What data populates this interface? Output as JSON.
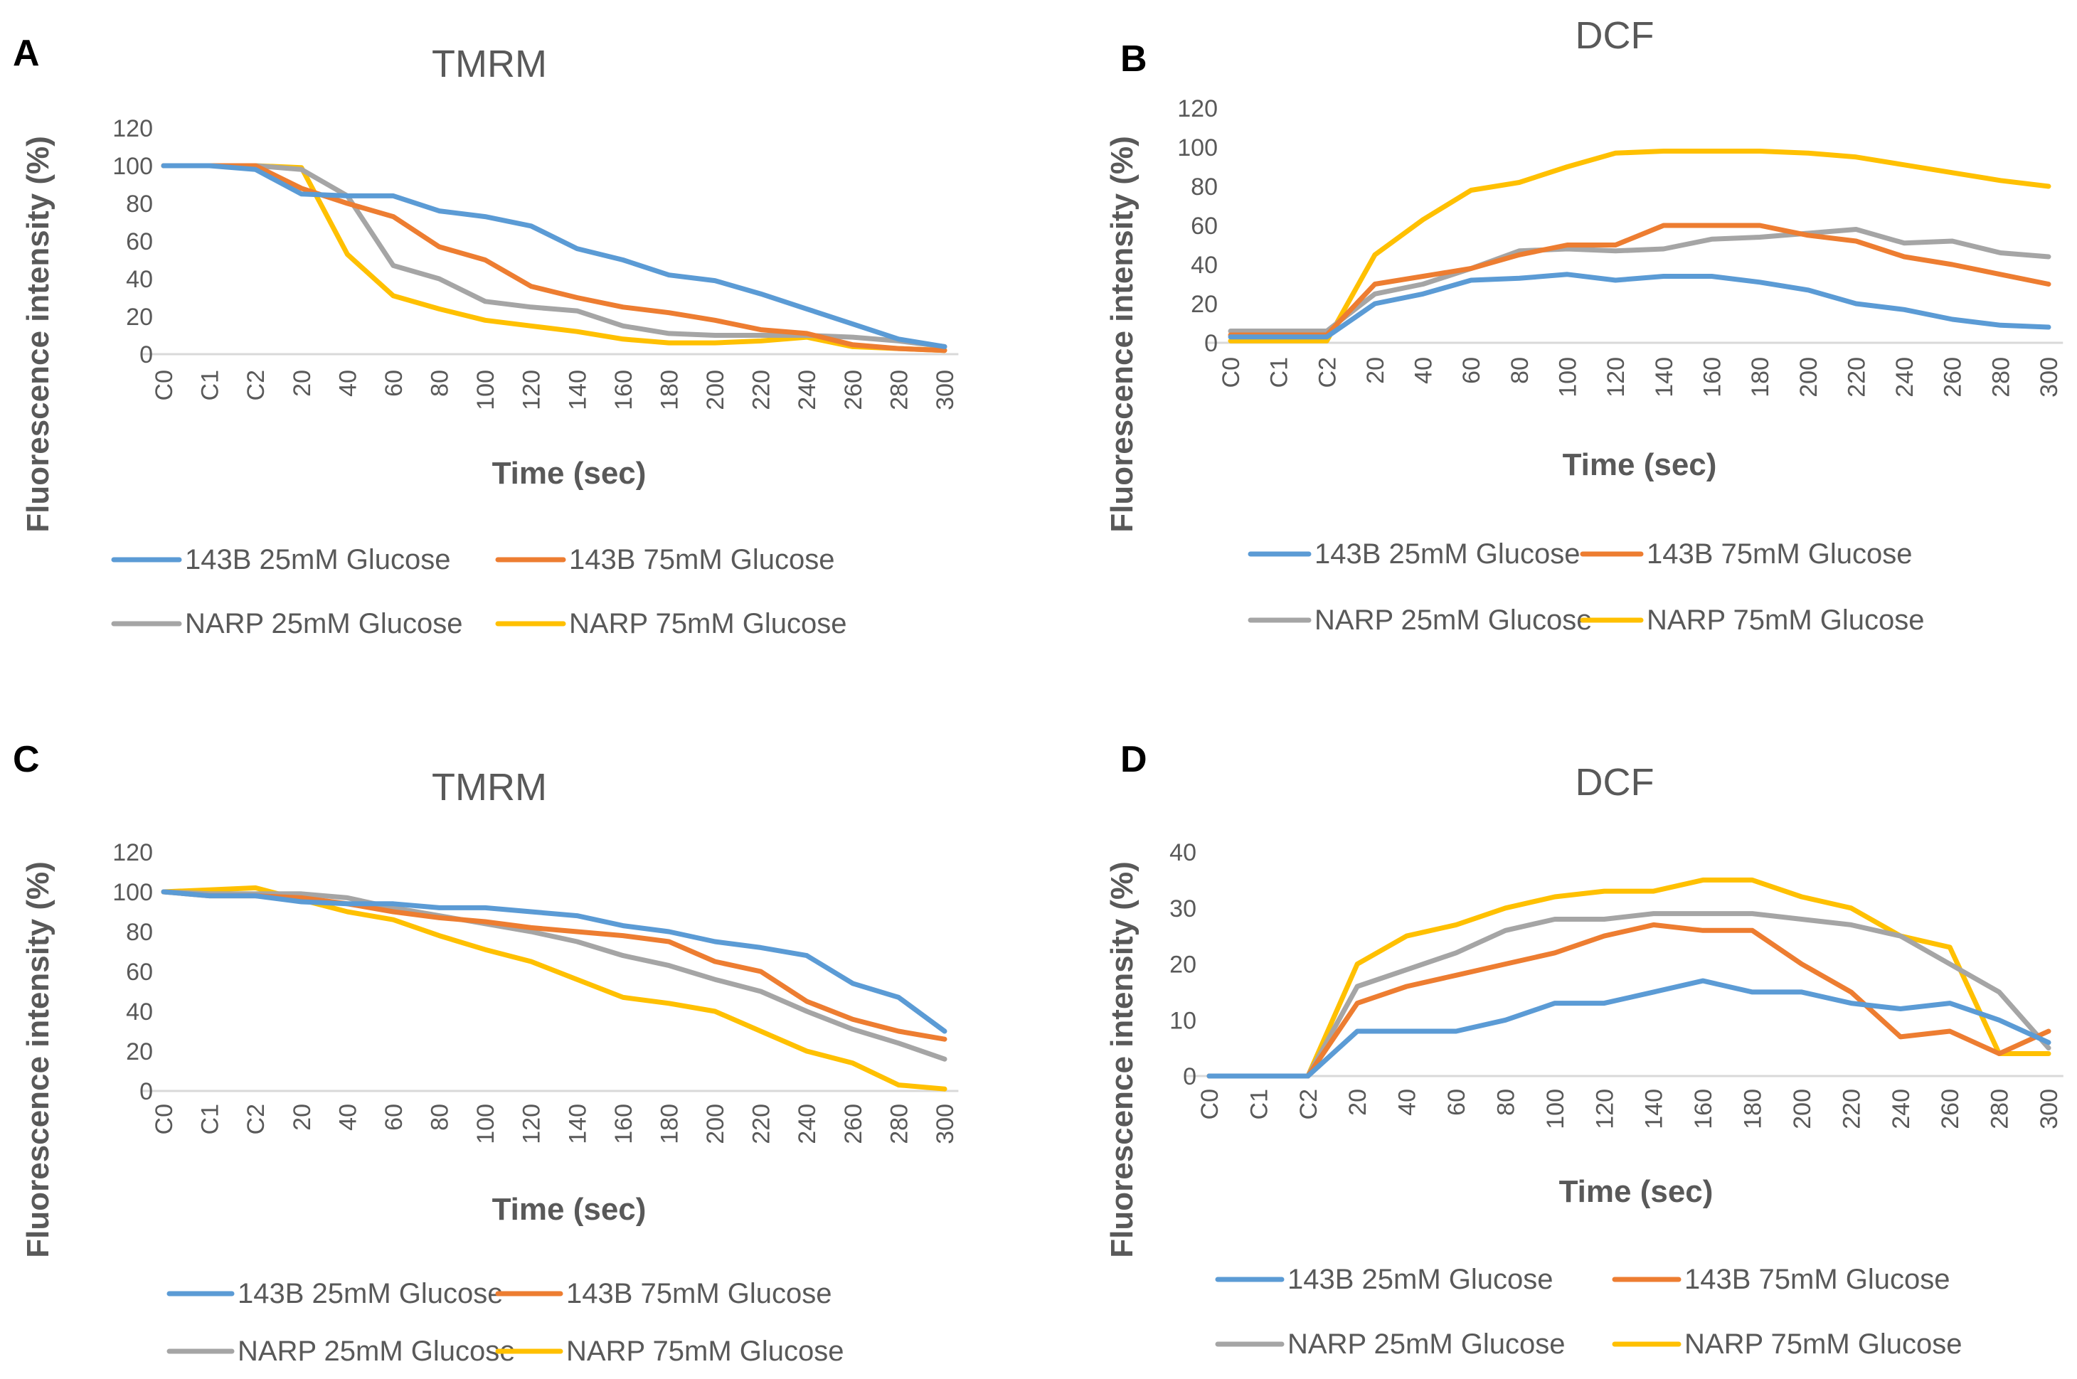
{
  "colors": {
    "blue": "#5b9bd5",
    "orange": "#ed7d31",
    "gray": "#a5a5a5",
    "yellow": "#ffc000"
  },
  "chart_data": [
    {
      "panel": "A",
      "type": "line",
      "title": "TMRM",
      "xlabel": "Time (sec)",
      "ylabel": "Fluorescence intensity (%)",
      "categories": [
        "C0",
        "C1",
        "C2",
        "20",
        "40",
        "60",
        "80",
        "100",
        "120",
        "140",
        "160",
        "180",
        "200",
        "220",
        "240",
        "260",
        "280",
        "300"
      ],
      "yticks": [
        "0",
        "20",
        "40",
        "60",
        "80",
        "100",
        "120"
      ],
      "ylim": [
        0,
        120
      ],
      "grid": false,
      "legend_position": "bottom",
      "series": [
        {
          "name": "143B 25mM Glucose",
          "color": "#5b9bd5",
          "values": [
            100,
            100,
            98,
            85,
            84,
            84,
            76,
            73,
            68,
            56,
            50,
            42,
            39,
            32,
            24,
            16,
            8,
            4
          ]
        },
        {
          "name": "143B 75mM Glucose",
          "color": "#ed7d31",
          "values": [
            100,
            100,
            100,
            88,
            80,
            73,
            57,
            50,
            36,
            30,
            25,
            22,
            18,
            13,
            11,
            5,
            3,
            2
          ]
        },
        {
          "name": "NARP 25mM  Glucose",
          "color": "#a5a5a5",
          "values": [
            100,
            100,
            100,
            98,
            84,
            47,
            40,
            28,
            25,
            23,
            15,
            11,
            10,
            10,
            10,
            9,
            7,
            4
          ]
        },
        {
          "name": "NARP 75mM Glucose",
          "color": "#ffc000",
          "values": [
            100,
            100,
            100,
            99,
            53,
            31,
            24,
            18,
            15,
            12,
            8,
            6,
            6,
            7,
            9,
            4,
            3,
            2
          ]
        }
      ]
    },
    {
      "panel": "B",
      "type": "line",
      "title": "DCF",
      "xlabel": "Time (sec)",
      "ylabel": "Fluorescence intensity (%)",
      "categories": [
        "C0",
        "C1",
        "C2",
        "20",
        "40",
        "60",
        "80",
        "100",
        "120",
        "140",
        "160",
        "180",
        "200",
        "220",
        "240",
        "260",
        "280",
        "300"
      ],
      "yticks": [
        "0",
        "20",
        "40",
        "60",
        "80",
        "100",
        "120"
      ],
      "ylim": [
        0,
        120
      ],
      "grid": false,
      "legend_position": "bottom",
      "series": [
        {
          "name": "143B 25mM Glucose",
          "color": "#5b9bd5",
          "values": [
            3,
            3,
            3,
            20,
            25,
            32,
            33,
            35,
            32,
            34,
            34,
            31,
            27,
            20,
            17,
            12,
            9,
            8
          ]
        },
        {
          "name": "143B 75mM  Glucose",
          "color": "#ed7d31",
          "values": [
            4,
            4,
            4,
            30,
            34,
            38,
            45,
            50,
            50,
            60,
            60,
            60,
            55,
            52,
            44,
            40,
            35,
            30
          ]
        },
        {
          "name": "NARP 25mM Glucose",
          "color": "#a5a5a5",
          "values": [
            6,
            6,
            6,
            25,
            30,
            38,
            47,
            48,
            47,
            48,
            53,
            54,
            56,
            58,
            51,
            52,
            46,
            44
          ]
        },
        {
          "name": "NARP 75mM Glucose",
          "color": "#ffc000",
          "values": [
            1,
            1,
            1,
            45,
            63,
            78,
            82,
            90,
            97,
            98,
            98,
            98,
            97,
            95,
            91,
            87,
            83,
            80
          ]
        }
      ]
    },
    {
      "panel": "C",
      "type": "line",
      "title": "TMRM",
      "xlabel": "Time (sec)",
      "ylabel": "Fluorescence intensity (%)",
      "categories": [
        "C0",
        "C1",
        "C2",
        "20",
        "40",
        "60",
        "80",
        "100",
        "120",
        "140",
        "160",
        "180",
        "200",
        "220",
        "240",
        "260",
        "280",
        "300"
      ],
      "yticks": [
        "0",
        "20",
        "40",
        "60",
        "80",
        "100",
        "120"
      ],
      "ylim": [
        0,
        120
      ],
      "grid": false,
      "legend_position": "bottom",
      "series": [
        {
          "name": "143B 25mM Glucose",
          "color": "#5b9bd5",
          "values": [
            100,
            98,
            98,
            95,
            94,
            94,
            92,
            92,
            90,
            88,
            83,
            80,
            75,
            72,
            68,
            54,
            47,
            30
          ]
        },
        {
          "name": "143B 75mM Glucose",
          "color": "#ed7d31",
          "values": [
            100,
            98,
            98,
            97,
            94,
            90,
            87,
            85,
            82,
            80,
            78,
            75,
            65,
            60,
            45,
            36,
            30,
            26
          ]
        },
        {
          "name": "NARP 25mM Glucose",
          "color": "#a5a5a5",
          "values": [
            100,
            99,
            99,
            99,
            97,
            92,
            88,
            84,
            80,
            75,
            68,
            63,
            56,
            50,
            40,
            31,
            24,
            16
          ]
        },
        {
          "name": "NARP 75mM Glucose",
          "color": "#ffc000",
          "values": [
            100,
            101,
            102,
            96,
            90,
            86,
            78,
            71,
            65,
            56,
            47,
            44,
            40,
            30,
            20,
            14,
            3,
            1
          ]
        }
      ]
    },
    {
      "panel": "D",
      "type": "line",
      "title": "DCF",
      "xlabel": "Time (sec)",
      "ylabel": "Fluorescence intensity (%)",
      "categories": [
        "C0",
        "C1",
        "C2",
        "20",
        "40",
        "60",
        "80",
        "100",
        "120",
        "140",
        "160",
        "180",
        "200",
        "220",
        "240",
        "260",
        "280",
        "300"
      ],
      "yticks": [
        "0",
        "10",
        "20",
        "30",
        "40"
      ],
      "ylim": [
        0,
        40
      ],
      "grid": false,
      "legend_position": "bottom",
      "series": [
        {
          "name": "143B 25mM Glucose",
          "color": "#5b9bd5",
          "values": [
            0,
            0,
            0,
            8,
            8,
            8,
            10,
            13,
            13,
            15,
            17,
            15,
            15,
            13,
            12,
            13,
            10,
            6
          ]
        },
        {
          "name": "143B 75mM Glucose",
          "color": "#ed7d31",
          "values": [
            0,
            0,
            0,
            13,
            16,
            18,
            20,
            22,
            25,
            27,
            26,
            26,
            20,
            15,
            7,
            8,
            4,
            8
          ]
        },
        {
          "name": "NARP 25mM Glucose",
          "color": "#a5a5a5",
          "values": [
            0,
            0,
            0,
            16,
            19,
            22,
            26,
            28,
            28,
            29,
            29,
            29,
            28,
            27,
            25,
            20,
            15,
            5
          ]
        },
        {
          "name": "NARP 75mM Glucose",
          "color": "#ffc000",
          "values": [
            0,
            0,
            0,
            20,
            25,
            27,
            30,
            32,
            33,
            33,
            35,
            35,
            32,
            30,
            25,
            23,
            4,
            4
          ]
        }
      ]
    }
  ]
}
